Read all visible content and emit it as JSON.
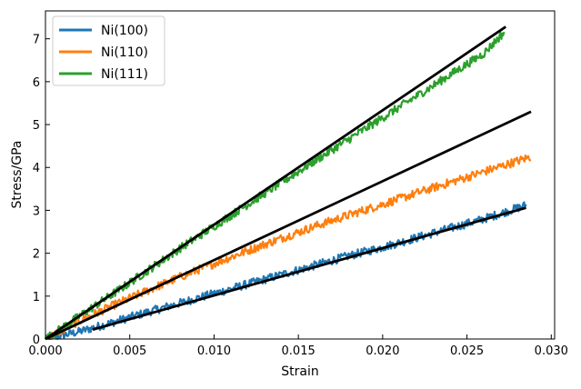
{
  "chart_data": {
    "type": "line",
    "title": "",
    "xlabel": "Strain",
    "ylabel": "Stress/GPa",
    "xlim": [
      0,
      0.0302
    ],
    "ylim": [
      0,
      7.65
    ],
    "grid": false,
    "legend_position": "top-left",
    "x_ticks": [
      "0.000",
      "0.005",
      "0.010",
      "0.015",
      "0.020",
      "0.025",
      "0.030"
    ],
    "y_ticks": [
      "0",
      "1",
      "2",
      "3",
      "4",
      "5",
      "6",
      "7"
    ],
    "series": [
      {
        "name": "Ni(100)",
        "color": "#1f77b4",
        "x": [
          0,
          0.002,
          0.004,
          0.006,
          0.008,
          0.01,
          0.012,
          0.014,
          0.016,
          0.018,
          0.02,
          0.022,
          0.024,
          0.026,
          0.0285
        ],
        "y": [
          0,
          0.17,
          0.39,
          0.62,
          0.84,
          1.06,
          1.28,
          1.5,
          1.72,
          1.94,
          2.14,
          2.36,
          2.58,
          2.8,
          3.12
        ]
      },
      {
        "name": "Ni(110)",
        "color": "#ff7f0e",
        "x": [
          0,
          0.002,
          0.004,
          0.006,
          0.008,
          0.01,
          0.012,
          0.014,
          0.016,
          0.018,
          0.02,
          0.022,
          0.024,
          0.026,
          0.0288
        ],
        "y": [
          0,
          0.42,
          0.78,
          1.12,
          1.45,
          1.76,
          2.06,
          2.35,
          2.63,
          2.89,
          3.14,
          3.4,
          3.65,
          3.9,
          4.25
        ]
      },
      {
        "name": "Ni(111)",
        "color": "#2ca02c",
        "x": [
          0,
          0.002,
          0.004,
          0.006,
          0.008,
          0.01,
          0.012,
          0.014,
          0.016,
          0.018,
          0.02,
          0.022,
          0.024,
          0.026,
          0.0272
        ],
        "y": [
          0,
          0.53,
          1.05,
          1.58,
          2.12,
          2.63,
          3.14,
          3.65,
          4.16,
          4.66,
          5.16,
          5.66,
          6.16,
          6.66,
          7.15
        ]
      }
    ],
    "fit_lines": [
      {
        "color": "#000000",
        "x": [
          0.0028,
          0.0285
        ],
        "y": [
          0.22,
          3.06
        ]
      },
      {
        "color": "#000000",
        "x": [
          0,
          0.0288
        ],
        "y": [
          0,
          5.3
        ]
      },
      {
        "color": "#000000",
        "x": [
          0,
          0.0273
        ],
        "y": [
          0,
          7.28
        ]
      }
    ]
  }
}
